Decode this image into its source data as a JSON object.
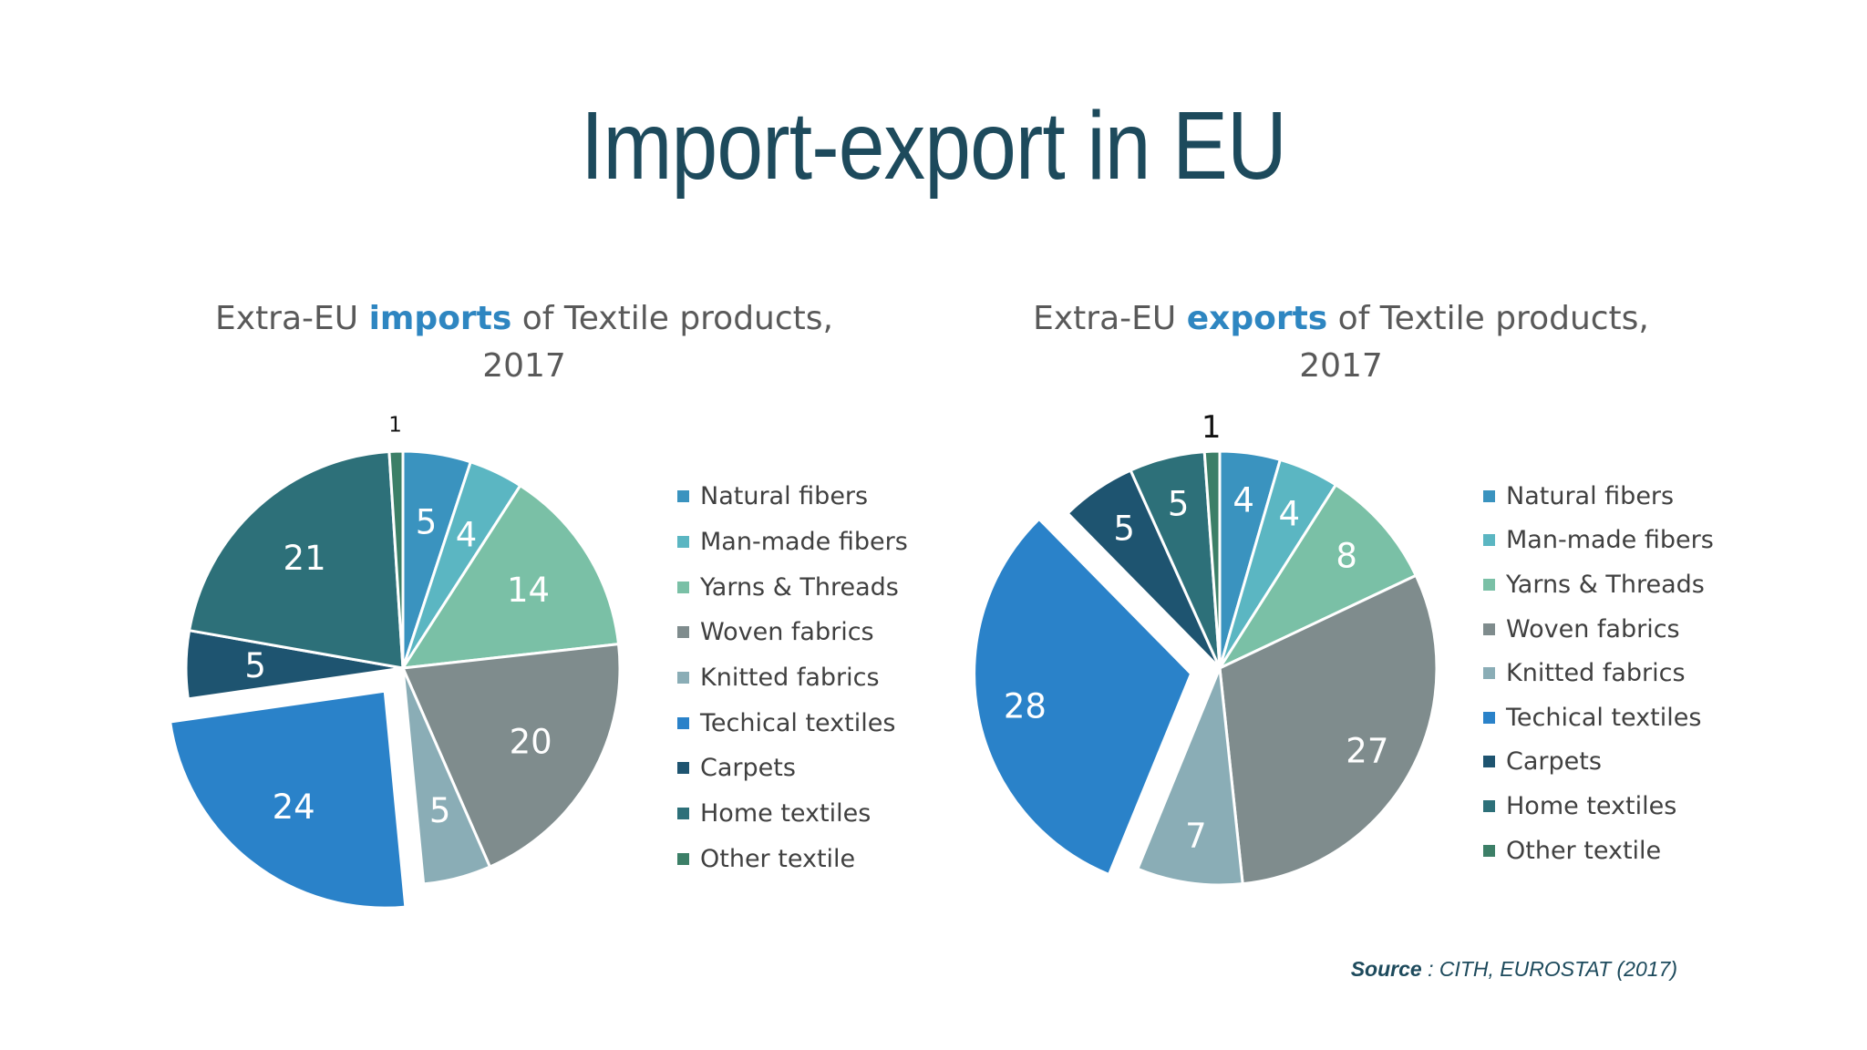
{
  "title": "Import-export in EU",
  "source": {
    "label": "Source",
    "separator": " : ",
    "text": "CITH, EUROSTAT (2017)"
  },
  "chart_data": [
    {
      "type": "pie",
      "title_prefix": "Extra-EU ",
      "title_highlight": "imports",
      "title_suffix": " of Textile products,",
      "title_line2": "2017",
      "categories": [
        "Natural fibers",
        "Man-made fibers",
        "Yarns & Threads",
        "Woven fabrics",
        "Knitted fabrics",
        "Techical textiles",
        "Carpets",
        "Home textiles",
        "Other textile"
      ],
      "values": [
        5,
        4,
        14,
        20,
        5,
        24,
        5,
        21,
        1
      ],
      "exploded": [
        "Techical textiles"
      ],
      "legend": "right"
    },
    {
      "type": "pie",
      "title_prefix": "Extra-EU ",
      "title_highlight": "exports",
      "title_suffix": " of Textile products,",
      "title_line2": "2017",
      "categories": [
        "Natural fibers",
        "Man-made fibers",
        "Yarns & Threads",
        "Woven fabrics",
        "Knitted fabrics",
        "Techical textiles",
        "Carpets",
        "Home textiles",
        "Other textile"
      ],
      "values": [
        4,
        4,
        8,
        27,
        7,
        28,
        5,
        5,
        1
      ],
      "exploded": [
        "Techical textiles"
      ],
      "legend": "right"
    }
  ],
  "colors": {
    "Natural fibers": "#3a93bf",
    "Man-made fibers": "#5bb6c2",
    "Yarns & Threads": "#7ac0a6",
    "Woven fabrics": "#7f8c8d",
    "Knitted fabrics": "#8aadb6",
    "Techical textiles": "#2a82c9",
    "Carpets": "#1e5470",
    "Home textiles": "#2d7079",
    "Other textile": "#3c7f67"
  }
}
